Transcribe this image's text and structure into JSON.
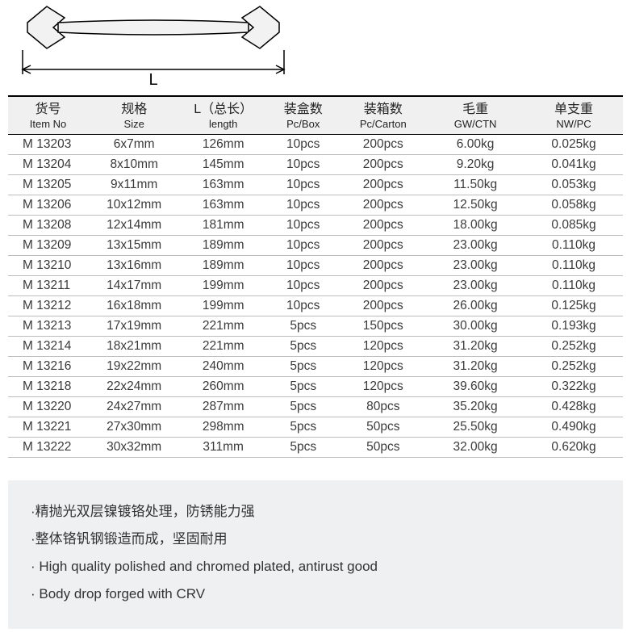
{
  "diagram": {
    "label_L": "L",
    "stroke": "#000000",
    "fill": "#f2f2f2"
  },
  "table": {
    "columns": [
      {
        "cn": "货号",
        "en": "Item No",
        "width": "13%",
        "align": "left"
      },
      {
        "cn": "规格",
        "en": "Size",
        "width": "15%",
        "align": "center"
      },
      {
        "cn": "L（总长）",
        "en": "length",
        "width": "14%",
        "align": "center"
      },
      {
        "cn": "装盒数",
        "en": "Pc/Box",
        "width": "12%",
        "align": "center"
      },
      {
        "cn": "装箱数",
        "en": "Pc/Carton",
        "width": "14%",
        "align": "center"
      },
      {
        "cn": "毛重",
        "en": "GW/CTN",
        "width": "16%",
        "align": "center"
      },
      {
        "cn": "单支重",
        "en": "NW/PC",
        "width": "16%",
        "align": "center"
      }
    ],
    "rows": [
      [
        "M 13203",
        "6x7mm",
        "126mm",
        "10pcs",
        "200pcs",
        "6.00kg",
        "0.025kg"
      ],
      [
        "M 13204",
        "8x10mm",
        "145mm",
        "10pcs",
        "200pcs",
        "9.20kg",
        "0.041kg"
      ],
      [
        "M 13205",
        "9x11mm",
        "163mm",
        "10pcs",
        "200pcs",
        "11.50kg",
        "0.053kg"
      ],
      [
        "M 13206",
        "10x12mm",
        "163mm",
        "10pcs",
        "200pcs",
        "12.50kg",
        "0.058kg"
      ],
      [
        "M 13208",
        "12x14mm",
        "181mm",
        "10pcs",
        "200pcs",
        "18.00kg",
        "0.085kg"
      ],
      [
        "M 13209",
        "13x15mm",
        "189mm",
        "10pcs",
        "200pcs",
        "23.00kg",
        "0.110kg"
      ],
      [
        "M 13210",
        "13x16mm",
        "189mm",
        "10pcs",
        "200pcs",
        "23.00kg",
        "0.110kg"
      ],
      [
        "M 13211",
        "14x17mm",
        "199mm",
        "10pcs",
        "200pcs",
        "23.00kg",
        "0.110kg"
      ],
      [
        "M 13212",
        "16x18mm",
        "199mm",
        "10pcs",
        "200pcs",
        "26.00kg",
        "0.125kg"
      ],
      [
        "M 13213",
        "17x19mm",
        "221mm",
        "5pcs",
        "150pcs",
        "30.00kg",
        "0.193kg"
      ],
      [
        "M 13214",
        "18x21mm",
        "221mm",
        "5pcs",
        "120pcs",
        "31.20kg",
        "0.252kg"
      ],
      [
        "M 13216",
        "19x22mm",
        "240mm",
        "5pcs",
        "120pcs",
        "31.20kg",
        "0.252kg"
      ],
      [
        "M 13218",
        "22x24mm",
        "260mm",
        "5pcs",
        "120pcs",
        "39.60kg",
        "0.322kg"
      ],
      [
        "M 13220",
        "24x27mm",
        "287mm",
        "5pcs",
        "80pcs",
        "35.20kg",
        "0.428kg"
      ],
      [
        "M 13221",
        "27x30mm",
        "298mm",
        "5pcs",
        "50pcs",
        "25.50kg",
        "0.490kg"
      ],
      [
        "M 13222",
        "30x32mm",
        "311mm",
        "5pcs",
        "50pcs",
        "32.00kg",
        "0.620kg"
      ]
    ]
  },
  "notes": {
    "background": "#eef0f1",
    "bullets": [
      "·精抛光双层镍镀铬处理，防锈能力强",
      "·整体铬钒钢锻造而成，坚固耐用",
      "· High quality polished and chromed plated, antirust good",
      "· Body drop forged with CRV"
    ]
  }
}
